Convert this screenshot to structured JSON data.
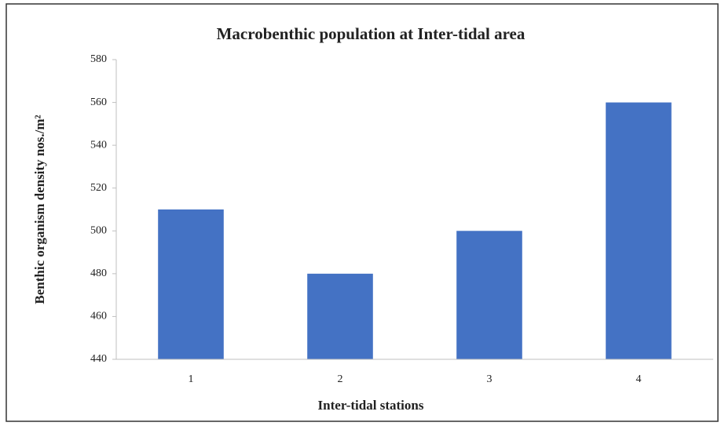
{
  "chart_data": {
    "type": "bar",
    "title": "Macrobenthic population at Inter-tidal area",
    "x_label": "Inter-tidal stations",
    "y_label": "Benthic organism density nos./m²",
    "categories": [
      "1",
      "2",
      "3",
      "4"
    ],
    "values": [
      510,
      480,
      500,
      560
    ],
    "color": "#4472c4",
    "ylim": [
      440,
      580
    ],
    "yticks": [
      440,
      460,
      480,
      500,
      520,
      540,
      560,
      580
    ],
    "grid": false
  }
}
